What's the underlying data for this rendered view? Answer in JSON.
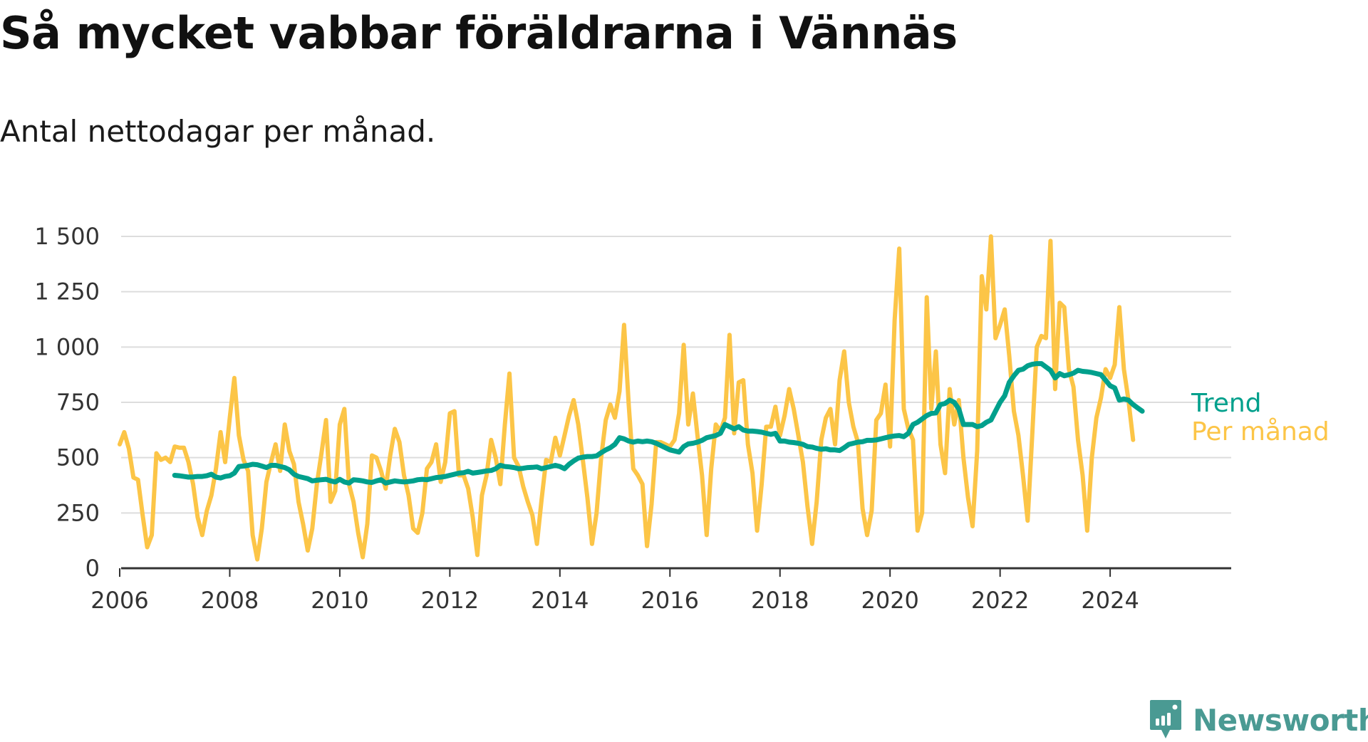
{
  "title": "Så mycket vabbar föräldrarna i Vännäs",
  "subtitle": "Antal nettodagar per månad.",
  "brand": {
    "name": "Newsworthy",
    "icon": "newsworthy-logo-icon",
    "color": "#4a9a93"
  },
  "colors": {
    "monthly": "#fcc547",
    "trend": "#00a08c",
    "grid": "#dddddd",
    "axis": "#333333"
  },
  "chart_data": {
    "type": "line",
    "title": "Så mycket vabbar föräldrarna i Vännäs",
    "subtitle": "Antal nettodagar per månad.",
    "xlabel": "",
    "ylabel": "",
    "ylim": [
      0,
      1500
    ],
    "yticks": [
      0,
      250,
      500,
      750,
      1000,
      1250,
      1500
    ],
    "ytick_labels": [
      "0",
      "250",
      "500",
      "750",
      "1 000",
      "1 250",
      "1 500"
    ],
    "xticks": [
      2006,
      2008,
      2010,
      2012,
      2014,
      2016,
      2018,
      2020,
      2022,
      2024
    ],
    "xtick_labels": [
      "2006",
      "2008",
      "2010",
      "2012",
      "2014",
      "2016",
      "2018",
      "2020",
      "2022",
      "2024"
    ],
    "grid": "horizontal",
    "legend": "direct labels at right end of lines",
    "series": [
      {
        "name": "Per månad",
        "color": "#fcc547",
        "start": "2006-01",
        "frequency": "monthly",
        "values": [
          560,
          615,
          540,
          410,
          400,
          240,
          95,
          150,
          520,
          490,
          500,
          480,
          550,
          545,
          545,
          480,
          380,
          230,
          150,
          260,
          330,
          450,
          615,
          480,
          680,
          860,
          600,
          490,
          440,
          150,
          40,
          180,
          390,
          480,
          560,
          440,
          650,
          530,
          470,
          300,
          200,
          80,
          180,
          380,
          520,
          670,
          300,
          350,
          650,
          720,
          380,
          300,
          160,
          50,
          200,
          510,
          500,
          440,
          360,
          510,
          630,
          570,
          420,
          330,
          180,
          160,
          250,
          450,
          480,
          560,
          390,
          480,
          700,
          710,
          420,
          420,
          360,
          230,
          60,
          330,
          420,
          580,
          500,
          380,
          650,
          880,
          500,
          460,
          370,
          300,
          240,
          110,
          310,
          490,
          480,
          590,
          510,
          600,
          690,
          760,
          650,
          490,
          320,
          110,
          250,
          500,
          670,
          740,
          680,
          800,
          1100,
          740,
          450,
          420,
          380,
          100,
          290,
          570,
          570,
          560,
          550,
          580,
          700,
          1010,
          650,
          790,
          600,
          420,
          150,
          450,
          650,
          620,
          680,
          1055,
          610,
          840,
          850,
          560,
          430,
          170,
          380,
          640,
          640,
          730,
          600,
          690,
          810,
          720,
          600,
          480,
          280,
          110,
          300,
          580,
          680,
          720,
          560,
          850,
          980,
          750,
          640,
          570,
          270,
          150,
          260,
          670,
          700,
          830,
          550,
          1120,
          1445,
          720,
          630,
          580,
          170,
          250,
          1225,
          720,
          980,
          560,
          430,
          810,
          650,
          760,
          500,
          320,
          190,
          530,
          1320,
          1170,
          1500,
          1040,
          1100,
          1170,
          960,
          710,
          600,
          420,
          215,
          600,
          1000,
          1050,
          1040,
          1480,
          810,
          1200,
          1180,
          900,
          820,
          580,
          420,
          170,
          500,
          680,
          770,
          900,
          860,
          920,
          1180,
          900,
          760,
          580
        ]
      },
      {
        "name": "Trend",
        "color": "#00a08c",
        "start": "2007-01",
        "frequency": "monthly",
        "values": [
          420,
          418,
          415,
          412,
          413,
          415,
          415,
          418,
          425,
          412,
          408,
          415,
          418,
          430,
          460,
          462,
          465,
          470,
          468,
          462,
          455,
          465,
          465,
          460,
          455,
          445,
          425,
          415,
          410,
          405,
          395,
          398,
          400,
          402,
          395,
          390,
          402,
          390,
          385,
          400,
          398,
          395,
          390,
          388,
          395,
          400,
          385,
          390,
          395,
          392,
          390,
          392,
          395,
          400,
          402,
          400,
          405,
          410,
          412,
          415,
          420,
          425,
          430,
          432,
          438,
          430,
          433,
          436,
          440,
          442,
          450,
          465,
          460,
          458,
          455,
          450,
          452,
          455,
          456,
          458,
          450,
          455,
          460,
          465,
          460,
          450,
          470,
          485,
          498,
          502,
          505,
          505,
          508,
          522,
          535,
          545,
          560,
          590,
          585,
          575,
          570,
          575,
          572,
          575,
          572,
          565,
          555,
          545,
          535,
          530,
          525,
          550,
          562,
          565,
          570,
          578,
          590,
          595,
          600,
          610,
          650,
          640,
          630,
          640,
          625,
          620,
          620,
          618,
          615,
          610,
          605,
          610,
          575,
          575,
          570,
          568,
          565,
          560,
          550,
          548,
          542,
          538,
          540,
          535,
          535,
          532,
          545,
          560,
          565,
          570,
          572,
          578,
          578,
          580,
          585,
          590,
          595,
          598,
          600,
          595,
          610,
          650,
          660,
          675,
          690,
          700,
          702,
          740,
          745,
          760,
          750,
          720,
          650,
          650,
          650,
          640,
          645,
          660,
          670,
          710,
          750,
          780,
          840,
          870,
          895,
          900,
          915,
          922,
          925,
          925,
          910,
          895,
          860,
          880,
          870,
          875,
          882,
          895,
          890,
          888,
          885,
          880,
          875,
          850,
          825,
          815,
          760,
          765,
          760,
          740,
          725,
          710
        ]
      }
    ]
  }
}
